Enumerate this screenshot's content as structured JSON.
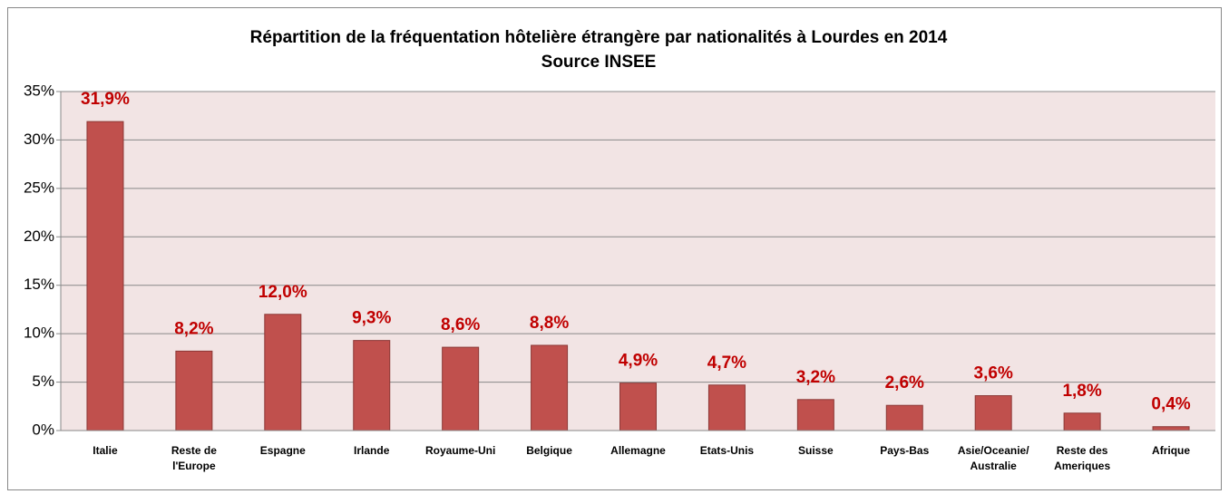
{
  "chart_data": {
    "type": "bar",
    "title": "Répartition de la fréquentation hôtelière étrangère par nationalités à Lourdes en 2014",
    "subtitle": "Source INSEE",
    "categories": [
      "Italie",
      "Reste de l'Europe",
      "Espagne",
      "Irlande",
      "Royaume-Uni",
      "Belgique",
      "Allemagne",
      "Etats-Unis",
      "Suisse",
      "Pays-Bas",
      "Asie/Oceanie/ Australie",
      "Reste des Ameriques",
      "Afrique"
    ],
    "values": [
      31.9,
      8.2,
      12.0,
      9.3,
      8.6,
      8.8,
      4.9,
      4.7,
      3.2,
      2.6,
      3.6,
      1.8,
      0.4
    ],
    "value_labels": [
      "31,9%",
      "8,2%",
      "12,0%",
      "9,3%",
      "8,6%",
      "8,8%",
      "4,9%",
      "4,7%",
      "3,2%",
      "2,6%",
      "3,6%",
      "1,8%",
      "0,4%"
    ],
    "color": "#c0504d",
    "ylim": [
      0,
      35
    ],
    "yticks": [
      {
        "value": 0,
        "label": "0%"
      },
      {
        "value": 5,
        "label": "5%"
      },
      {
        "value": 10,
        "label": "10%"
      },
      {
        "value": 15,
        "label": "15%"
      },
      {
        "value": 20,
        "label": "20%"
      },
      {
        "value": 25,
        "label": "25%"
      },
      {
        "value": 30,
        "label": "30%"
      },
      {
        "value": 35,
        "label": "35%"
      }
    ],
    "grid": true
  }
}
